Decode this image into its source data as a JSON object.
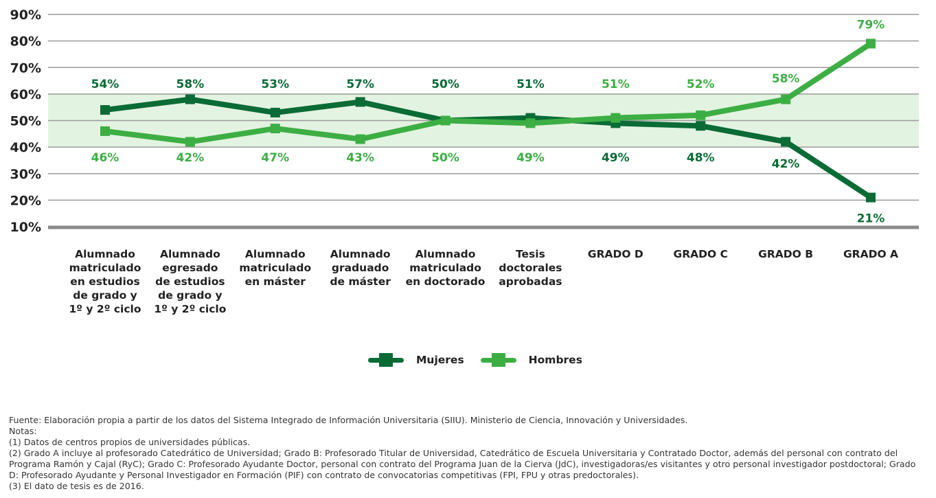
{
  "chart_data": {
    "type": "line",
    "categories": [
      "Alumnado\nmatriculado\nen estudios\nde grado y\n1º y 2º ciclo",
      "Alumnado\negresado\nde estudios\nde grado y\n1º y 2º ciclo",
      "Alumnado\nmatriculado\nen máster",
      "Alumnado\ngraduado\nde máster",
      "Alumnado\nmatriculado\nen doctorado",
      "Tesis\ndoctorales\naprobadas",
      "GRADO D",
      "GRADO C",
      "GRADO B",
      "GRADO A"
    ],
    "series": [
      {
        "name": "Mujeres",
        "color": "#0a6b36",
        "values": [
          54,
          58,
          53,
          57,
          50,
          51,
          49,
          48,
          42,
          21
        ],
        "labels": [
          "54%",
          "58%",
          "53%",
          "57%",
          "50%",
          "51%",
          "49%",
          "48%",
          "42%",
          "21%"
        ]
      },
      {
        "name": "Hombres",
        "color": "#3dae44",
        "values": [
          46,
          42,
          47,
          43,
          50,
          49,
          51,
          52,
          58,
          79
        ],
        "labels": [
          "46%",
          "42%",
          "47%",
          "43%",
          "50%",
          "49%",
          "51%",
          "52%",
          "58%",
          "79%"
        ]
      }
    ],
    "yticks": [
      "10%",
      "20%",
      "30%",
      "40%",
      "50%",
      "60%",
      "70%",
      "80%",
      "90%"
    ],
    "ylim": [
      10,
      90
    ],
    "band": [
      40,
      60
    ],
    "band_color": "#e3f3e1",
    "grid": true,
    "legend_position": "bottom-center"
  },
  "notes": [
    "Fuente: Elaboración propia a partir de los datos del Sistema Integrado de Información Universitaria (SIIU). Ministerio de Ciencia, Innovación y Universidades.",
    "Notas:",
    "(1) Datos de centros propios de universidades públicas.",
    "(2) Grado A incluye al profesorado Catedrático de Universidad; Grado B: Profesorado Titular de Universidad, Catedrático de Escuela Universitaria y Contratado Doctor, además del personal con contrato del Programa Ramón y Cajal (RyC); Grado C: Profesorado Ayudante Doctor, personal con contrato del Programa Juan de la Cierva (JdC), investigadoras/es visitantes y otro personal investigador postdoctoral; Grado D: Profesorado Ayudante y Personal Investigador en Formación (PIF) con contrato de convocatorias competitivas (FPI, FPU y otras predoctorales).",
    "(3) El dato de tesis es de 2016."
  ]
}
